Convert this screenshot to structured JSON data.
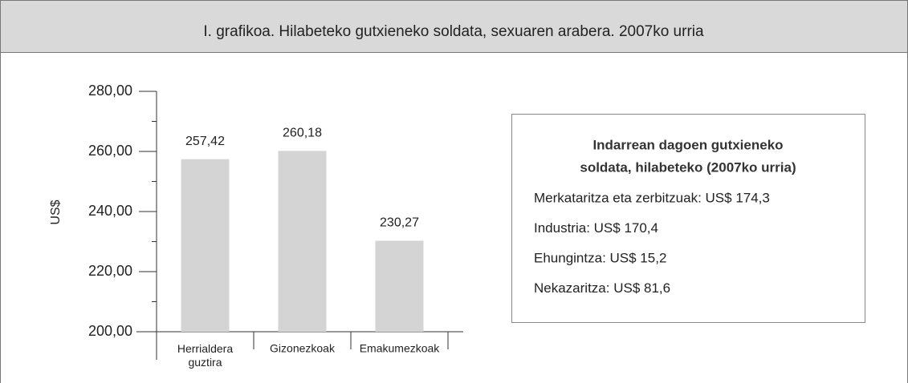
{
  "chart_data": {
    "type": "bar",
    "title": "I. grafikoa. Hilabeteko gutxieneko soldata, sexuaren arabera. 2007ko urria",
    "ylabel": "US$",
    "categories": [
      "Herrialdera\nguztira",
      "Gizonezkoak",
      "Emakumezkoak"
    ],
    "values": [
      257.42,
      260.18,
      230.27
    ],
    "value_labels": [
      "257,42",
      "260,18",
      "230,27"
    ],
    "color": "#d4d4d4",
    "ylim": [
      200,
      280
    ],
    "yticks": [
      {
        "value": 200,
        "label": "200,00"
      },
      {
        "value": 220,
        "label": "220,00"
      },
      {
        "value": 240,
        "label": "240,00"
      },
      {
        "value": 260,
        "label": "260,00"
      },
      {
        "value": 280,
        "label": "280,00"
      }
    ],
    "minor_yticks": [
      210,
      230,
      250,
      270
    ],
    "grid": false,
    "note": {
      "title_lines": [
        "Indarrean dagoen gutxieneko",
        "soldata, hilabeteko (2007ko urria)"
      ],
      "items": [
        "Merkataritza eta zerbitzuak: US$ 174,3",
        "Industria: US$ 170,4",
        "Ehungintza: US$ 15,2",
        "Nekazaritza: US$ 81,6"
      ]
    }
  }
}
